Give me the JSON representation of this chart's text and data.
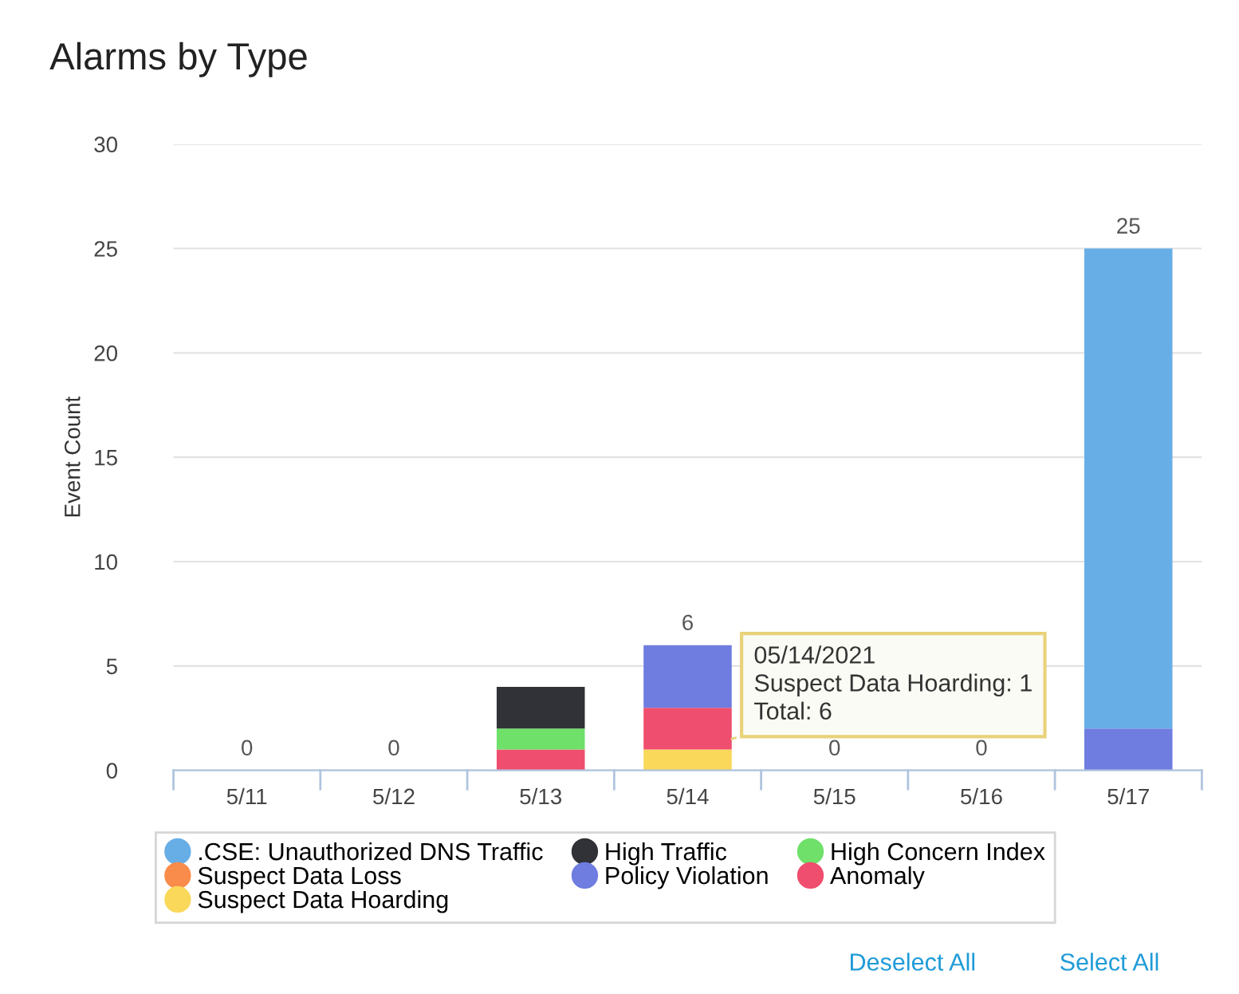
{
  "chart_data": {
    "type": "bar",
    "title": "Alarms by Type",
    "ylabel": "Event Count",
    "stacked": true,
    "categories": [
      "5/11",
      "5/12",
      "5/13",
      "5/14",
      "5/15",
      "5/16",
      "5/17"
    ],
    "series": [
      {
        "name": "Suspect Data Hoarding",
        "color": "#f9d85a",
        "values": [
          0,
          0,
          0,
          1,
          0,
          0,
          0
        ]
      },
      {
        "name": "Anomaly",
        "color": "#f04e6e",
        "values": [
          0,
          0,
          1,
          2,
          0,
          0,
          0
        ]
      },
      {
        "name": "Policy Violation",
        "color": "#6f7de0",
        "values": [
          0,
          0,
          0,
          3,
          0,
          0,
          2
        ]
      },
      {
        "name": "Suspect Data Loss",
        "color": "#f98c4a",
        "values": [
          0,
          0,
          0,
          0,
          0,
          0,
          0
        ]
      },
      {
        "name": "High Concern Index",
        "color": "#6fe06a",
        "values": [
          0,
          0,
          1,
          0,
          0,
          0,
          0
        ]
      },
      {
        "name": "High Traffic",
        "color": "#303237",
        "values": [
          0,
          0,
          2,
          0,
          0,
          0,
          0
        ]
      },
      {
        "name": ".CSE: Unauthorized DNS Traffic",
        "color": "#68aee6",
        "values": [
          0,
          0,
          0,
          0,
          0,
          0,
          23
        ]
      }
    ],
    "totals": [
      "0",
      "0",
      null,
      "6",
      "0",
      "0",
      "25"
    ],
    "ylim": [
      0,
      30
    ],
    "yticks": [
      0,
      5,
      10,
      15,
      20,
      25,
      30
    ],
    "grid": "y",
    "legend": "bottom",
    "marker": "circle",
    "annotations": [
      {
        "text": "05/14/2021\nSuspect Data Hoarding: 1\nTotal: 6",
        "x": "5/14",
        "y": 1
      },
      "Deselect All",
      "Select All"
    ]
  }
}
